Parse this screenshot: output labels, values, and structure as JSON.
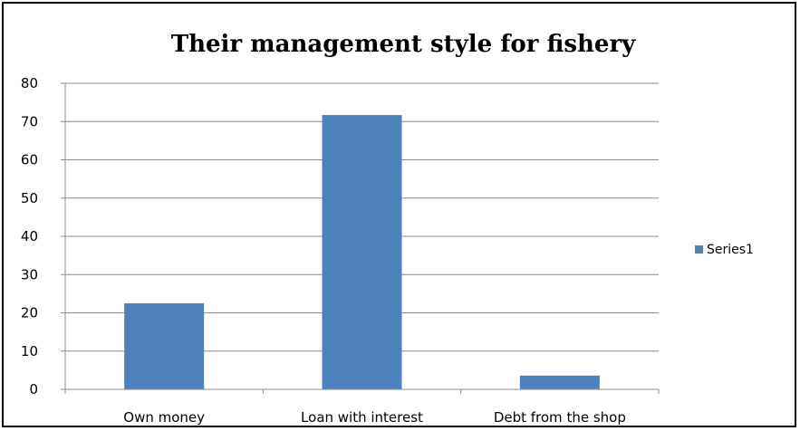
{
  "chart_data": {
    "type": "bar",
    "title": "Their management style for fishery",
    "categories": [
      "Own money",
      "Loan with interest",
      "Debt from the shop"
    ],
    "series": [
      {
        "name": "Series1",
        "values": [
          22.5,
          71.7,
          3.6
        ],
        "color": "#4f81bd"
      }
    ],
    "xlabel": "",
    "ylabel": "",
    "ylim": [
      0,
      80
    ],
    "yticks": [
      "0",
      "10",
      "20",
      "30",
      "40",
      "50",
      "60",
      "70",
      "80"
    ],
    "grid": true,
    "legend": "right"
  }
}
